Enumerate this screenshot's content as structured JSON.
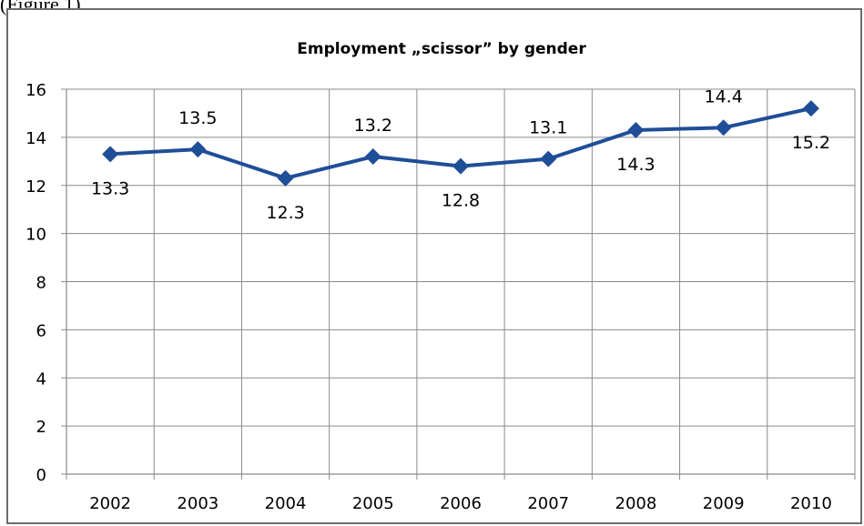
{
  "page": {
    "top_text": "(Figure 1)"
  },
  "chart_data": {
    "type": "line",
    "title": "Employment „scissor” by gender",
    "categories": [
      "2002",
      "2003",
      "2004",
      "2005",
      "2006",
      "2007",
      "2008",
      "2009",
      "2010"
    ],
    "series": [
      {
        "values": [
          13.3,
          13.5,
          12.3,
          13.2,
          12.8,
          13.1,
          14.3,
          14.4,
          15.2
        ],
        "color": "#1f4e99",
        "marker": "diamond"
      }
    ],
    "data_labels": [
      "13.3",
      "13.5",
      "12.3",
      "13.2",
      "12.8",
      "13.1",
      "14.3",
      "14.4",
      "15.2"
    ],
    "data_label_positions": [
      "below",
      "above",
      "below",
      "above",
      "below",
      "above",
      "below",
      "above",
      "below"
    ],
    "ylim": [
      0,
      16
    ],
    "yticks": [
      0,
      2,
      4,
      6,
      8,
      10,
      12,
      14,
      16
    ],
    "ytick_labels": [
      "0",
      "2",
      "4",
      "6",
      "8",
      "10",
      "12",
      "14",
      "16"
    ],
    "xlabel": "",
    "ylabel": "",
    "grid": true,
    "legend": "none",
    "colors": {
      "line": "#1f4e99",
      "grid": "#8a8a8a",
      "frame": "#6d6d6d"
    }
  }
}
